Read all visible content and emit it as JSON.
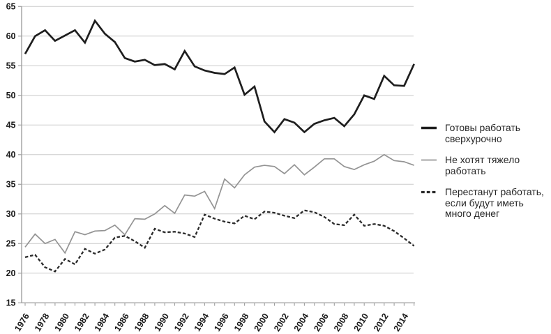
{
  "page": {
    "background": "#ffffff"
  },
  "colors": {
    "grid": "#cbcbcb",
    "axis": "#a0a0a0",
    "tick": "#a0a0a0",
    "axis_label": "#1a1a1a",
    "legend_text": "#262626"
  },
  "chart_data": {
    "type": "line",
    "title": "",
    "xlabel": "",
    "ylabel": "",
    "grid": true,
    "legend_position": "right",
    "ylim": [
      15,
      65
    ],
    "y_ticks": [
      15,
      20,
      25,
      30,
      35,
      40,
      45,
      50,
      55,
      60,
      65
    ],
    "x": [
      1976,
      1977,
      1978,
      1979,
      1980,
      1981,
      1982,
      1983,
      1984,
      1985,
      1986,
      1987,
      1988,
      1989,
      1990,
      1991,
      1992,
      1993,
      1994,
      1995,
      1996,
      1997,
      1998,
      1999,
      2000,
      2001,
      2002,
      2003,
      2004,
      2005,
      2006,
      2007,
      2008,
      2009,
      2010,
      2011,
      2012,
      2013,
      2014,
      2015
    ],
    "x_tick_labels": [
      "1976",
      "1978",
      "1980",
      "1982",
      "1984",
      "1986",
      "1988",
      "1990",
      "1992",
      "1994",
      "1996",
      "1998",
      "2000",
      "2002",
      "2004",
      "2006",
      "2008",
      "2010",
      "2012",
      "2014"
    ],
    "series": [
      {
        "name": "Готовы работать сверхурочно",
        "legend_label": "Готовы работать\nсверхурочно",
        "style": "solid-thick",
        "color": "#1e1e1e",
        "width": 2.7,
        "swatch_width": 3.6,
        "dash": "",
        "values": [
          57.0,
          60.0,
          61.0,
          59.2,
          60.1,
          61.0,
          58.9,
          62.6,
          60.4,
          59.0,
          56.3,
          55.7,
          56.0,
          55.1,
          55.3,
          54.4,
          57.5,
          54.9,
          54.2,
          53.8,
          53.6,
          54.7,
          50.1,
          51.5,
          45.6,
          43.8,
          46.0,
          45.4,
          43.8,
          45.2,
          45.8,
          46.2,
          44.8,
          46.8,
          50.0,
          49.4,
          53.3,
          51.7,
          51.6,
          55.3
        ]
      },
      {
        "name": "Не хотят тяжело работать",
        "legend_label": "Не хотят тяжело\nработать",
        "style": "solid-thin",
        "color": "#949494",
        "width": 1.7,
        "swatch_width": 1.8,
        "dash": "",
        "values": [
          24.4,
          26.6,
          25.0,
          25.7,
          23.4,
          27.0,
          26.5,
          27.1,
          27.2,
          28.1,
          26.5,
          29.2,
          29.1,
          30.0,
          31.4,
          30.1,
          33.2,
          33.0,
          33.8,
          30.9,
          35.9,
          34.4,
          36.6,
          37.9,
          38.2,
          38.0,
          36.8,
          38.3,
          36.6,
          37.9,
          39.3,
          39.3,
          38.0,
          37.5,
          38.3,
          38.9,
          40.0,
          39.0,
          38.8,
          38.2
        ]
      },
      {
        "name": "Перестанут работать, если будут иметь много денег",
        "legend_label": "Перестанут работать,\nесли будут иметь\nмного денег",
        "style": "dashed",
        "color": "#2a2a2a",
        "width": 2.3,
        "swatch_width": 3.2,
        "dash": "4.5 2.8",
        "values": [
          22.7,
          23.1,
          21.0,
          20.3,
          22.4,
          21.5,
          24.1,
          23.3,
          24.0,
          26.0,
          26.3,
          25.4,
          24.3,
          27.5,
          26.9,
          27.0,
          26.7,
          26.1,
          29.9,
          29.2,
          28.7,
          28.4,
          29.7,
          29.1,
          30.4,
          30.2,
          29.7,
          29.3,
          30.6,
          30.3,
          29.5,
          28.3,
          28.1,
          29.9,
          28.0,
          28.3,
          28.0,
          27.1,
          25.9,
          24.6
        ]
      }
    ]
  },
  "legend": {
    "items": [
      {
        "label": "Готовы работать\nсверхурочно"
      },
      {
        "label": "Не хотят тяжело\nработать"
      },
      {
        "label": "Перестанут работать,\nесли будут иметь\nмного денег"
      }
    ]
  }
}
